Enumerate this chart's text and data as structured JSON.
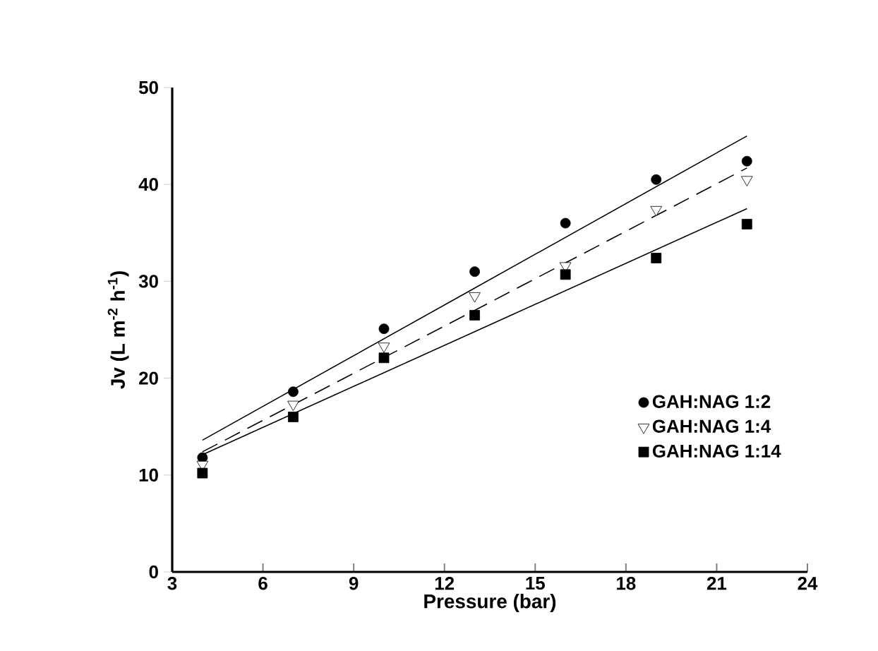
{
  "chart_data": {
    "type": "scatter",
    "xlabel": "Pressure (bar)",
    "ylabel": "Jv (L m$^{-2}$ h$^{-1}$)",
    "x": [
      4,
      7,
      10,
      13,
      16,
      19,
      22
    ],
    "series": [
      {
        "name": "GAH:NAG 1:2",
        "color": "#000000",
        "marker": "circle",
        "values": [
          11.8,
          18.6,
          25.1,
          31.0,
          36.0,
          40.5,
          42.4
        ]
      },
      {
        "name": "GAH:NAG 1:4",
        "color": "#000000",
        "marker": "triangle",
        "values": [
          11.1,
          17.3,
          23.3,
          28.5,
          31.6,
          37.4,
          40.5
        ]
      },
      {
        "name": "GAH:NAG 1:14",
        "color": "#000000",
        "marker": "square",
        "values": [
          10.2,
          16.0,
          22.1,
          26.5,
          30.7,
          32.4,
          35.9
        ]
      },
      {
        "type": "line",
        "color": "#000000",
        "line_style": "solid",
        "marker": "none",
        "x": [
          4,
          13,
          22
        ],
        "values": [
          13.6,
          29.3,
          45.0
        ]
      },
      {
        "type": "line",
        "color": "#000000",
        "line_style": "dashed",
        "marker": "none",
        "x": [
          4,
          13,
          22
        ],
        "values": [
          12.4,
          27.0,
          41.7
        ]
      },
      {
        "type": "line",
        "color": "#000000",
        "line_style": "solid",
        "marker": "none",
        "x": [
          4,
          13,
          22
        ],
        "values": [
          12.1,
          24.8,
          37.5
        ]
      }
    ],
    "xlim": [
      3,
      24
    ],
    "xticks": [
      3,
      6,
      9,
      12,
      15,
      18,
      21,
      24
    ],
    "ylim": [
      0,
      50
    ],
    "yticks": [
      0,
      10,
      20,
      30,
      40,
      50
    ],
    "grid": false,
    "legend": "bottom right"
  }
}
